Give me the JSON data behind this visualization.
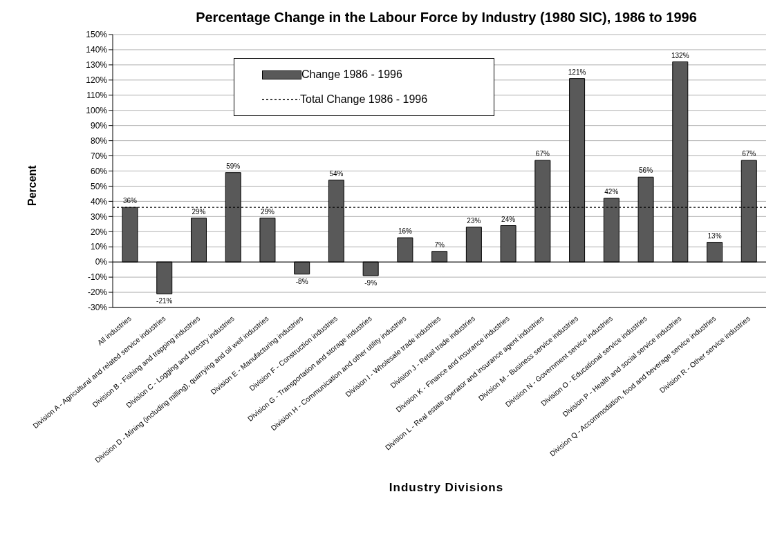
{
  "chart_data": {
    "type": "bar",
    "title": "Percentage Change in the Labour Force by Industry (1980 SIC), 1986 to 1996",
    "xlabel": "Industry Divisions",
    "ylabel": "Percent",
    "categories": [
      "All industries",
      "Division A - Agricultural and related service industries",
      "Division B - Fishing and trapping industries",
      "Division C - Logging and forestry industries",
      "Division D - Mining (including milling), quarrying and oil well industries",
      "Division E - Manufacturing industries",
      "Division F - Construction industries",
      "Division G - Transportation and storage industries",
      "Division H - Communication and other utility industries",
      "Division I - Wholesale trade industries",
      "Division J - Retail trade industries",
      "Division K - Finance and insurance industries",
      "Division L - Real estate operator and insurance agent industries",
      "Division M - Business service industries",
      "Division N - Government service industries",
      "Division O - Educational service industries",
      "Division P - Health and social service industries",
      "Division Q - Accommodation, food and beverage service industries",
      "Division R - Other service industries"
    ],
    "series": [
      {
        "name": "Change 1986 - 1996",
        "color": "#595959",
        "values": [
          36,
          -21,
          29,
          59,
          29,
          -8,
          54,
          -9,
          16,
          7,
          23,
          24,
          67,
          121,
          42,
          56,
          132,
          13,
          67
        ],
        "value_labels": [
          "36%",
          "-21%",
          "29%",
          "59%",
          "29%",
          "-8%",
          "54%",
          "-9%",
          "16%",
          "7%",
          "23%",
          "24%",
          "67%",
          "121%",
          "42%",
          "56%",
          "132%",
          "13%",
          "67%"
        ]
      }
    ],
    "ref_lines": [
      {
        "axis": "y",
        "value": 36,
        "label": "Total Change 1986 - 1996",
        "color": "#000000",
        "line_style": "dotted"
      }
    ],
    "ylim": [
      -30,
      150
    ],
    "yticks": [
      {
        "value": -30,
        "label": "-30%"
      },
      {
        "value": -20,
        "label": "-20%"
      },
      {
        "value": -10,
        "label": "-10%"
      },
      {
        "value": 0,
        "label": "0%"
      },
      {
        "value": 10,
        "label": "10%"
      },
      {
        "value": 20,
        "label": "20%"
      },
      {
        "value": 30,
        "label": "30%"
      },
      {
        "value": 40,
        "label": "40%"
      },
      {
        "value": 50,
        "label": "50%"
      },
      {
        "value": 60,
        "label": "60%"
      },
      {
        "value": 70,
        "label": "70%"
      },
      {
        "value": 80,
        "label": "80%"
      },
      {
        "value": 90,
        "label": "90%"
      },
      {
        "value": 100,
        "label": "100%"
      },
      {
        "value": 110,
        "label": "110%"
      },
      {
        "value": 120,
        "label": "120%"
      },
      {
        "value": 130,
        "label": "130%"
      },
      {
        "value": 140,
        "label": "140%"
      },
      {
        "value": 150,
        "label": "150%"
      }
    ],
    "grid": "y",
    "legend": "top"
  }
}
